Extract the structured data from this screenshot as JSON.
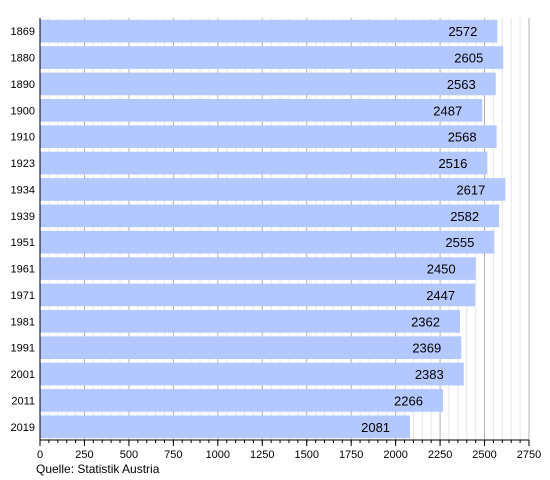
{
  "chart_data": {
    "type": "bar",
    "orientation": "horizontal",
    "categories": [
      "1869",
      "1880",
      "1890",
      "1900",
      "1910",
      "1923",
      "1934",
      "1939",
      "1951",
      "1961",
      "1971",
      "1981",
      "1991",
      "2001",
      "2011",
      "2019"
    ],
    "values": [
      2572,
      2605,
      2563,
      2487,
      2568,
      2516,
      2617,
      2582,
      2555,
      2450,
      2447,
      2362,
      2369,
      2383,
      2266,
      2081
    ],
    "xlim": [
      0,
      2750
    ],
    "x_ticks": [
      0,
      250,
      500,
      750,
      1000,
      1250,
      1500,
      1750,
      2000,
      2250,
      2500,
      2750
    ],
    "minor_step": 50,
    "grid": true,
    "bar_color": "#b3c8ff",
    "source": "Quelle: Statistik Austria"
  }
}
